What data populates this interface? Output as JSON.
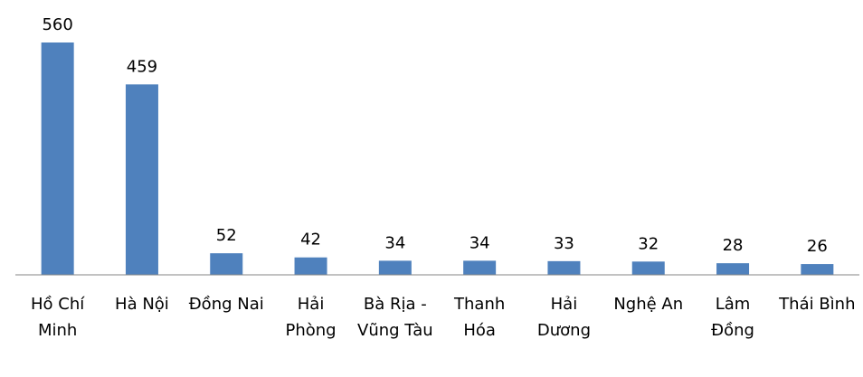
{
  "chart_data": {
    "type": "bar",
    "categories": [
      "Hồ Chí Minh",
      "Hà Nội",
      "Đồng Nai",
      "Hải Phòng",
      "Bà Rịa - Vũng Tàu",
      "Thanh Hóa",
      "Hải Dương",
      "Nghệ An",
      "Lâm Đồng",
      "Thái Bình"
    ],
    "values": [
      560,
      459,
      52,
      42,
      34,
      34,
      33,
      32,
      28,
      26
    ],
    "color": "#4f81bd"
  }
}
